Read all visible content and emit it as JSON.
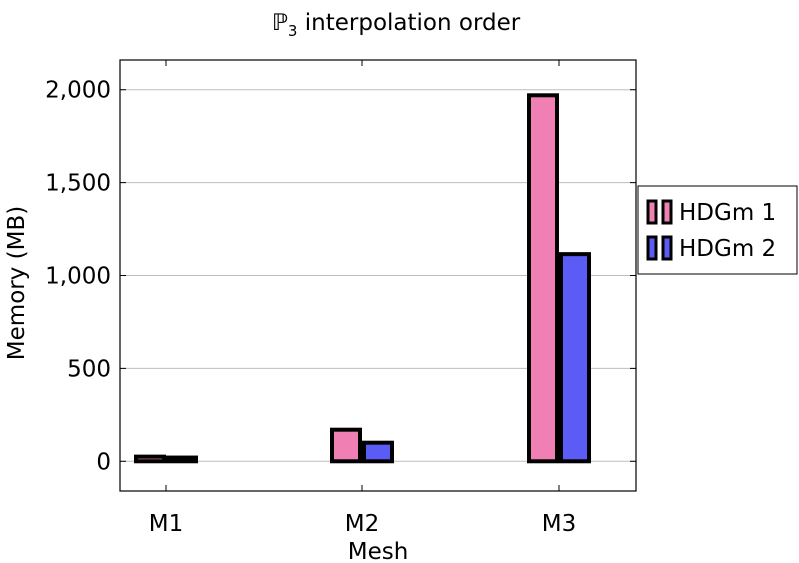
{
  "chart_data": {
    "type": "bar",
    "title_symbol": "ℙ",
    "title_subscript": "3",
    "title_rest": " interpolation order",
    "xlabel": "Mesh",
    "ylabel": "Memory (MB)",
    "categories": [
      "M1",
      "M2",
      "M3"
    ],
    "ylim": [
      -160,
      2160
    ],
    "yticks": [
      0,
      500,
      1000,
      1500,
      2000
    ],
    "ytick_labels": [
      "0",
      "500",
      "1,000",
      "1,500",
      "2,000"
    ],
    "grid": true,
    "legend_position": "right-outside",
    "series": [
      {
        "name": "HDGm 1",
        "color": "#f07fb4",
        "values": [
          25,
          170,
          1970
        ]
      },
      {
        "name": "HDGm 2",
        "color": "#5b5bf5",
        "values": [
          20,
          100,
          1115
        ]
      }
    ]
  }
}
